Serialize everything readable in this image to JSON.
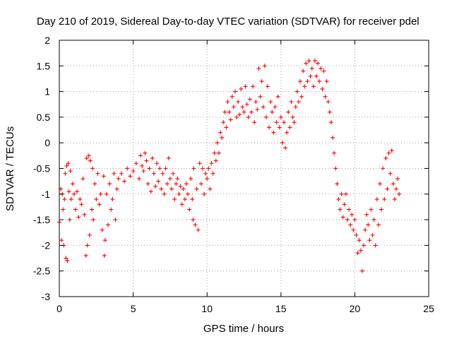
{
  "chart_data": {
    "type": "scatter",
    "title": "Day 210 of 2019, Sidereal Day-to-day VTEC variation (SDTVAR) for receiver pdel",
    "xlabel": "GPS time / hours",
    "ylabel": "SDTVAR / TECUs",
    "xlim": [
      0,
      25
    ],
    "ylim": [
      -3,
      2
    ],
    "xticks": [
      "0",
      "5",
      "10",
      "15",
      "20",
      "25"
    ],
    "yticks": [
      "2",
      "1.5",
      "1",
      "0.5",
      "0",
      "-0.5",
      "-1",
      "-1.5",
      "-2",
      "-2.5",
      "-3"
    ],
    "grid": true,
    "marker": "+",
    "color": "#ff0000",
    "series": [
      {
        "name": "SDTVAR",
        "points": [
          [
            0.0,
            -1.55
          ],
          [
            0.1,
            -0.9
          ],
          [
            0.15,
            -1.9
          ],
          [
            0.2,
            -1.0
          ],
          [
            0.25,
            -1.3
          ],
          [
            0.3,
            -2.0
          ],
          [
            0.35,
            -1.1
          ],
          [
            0.4,
            -0.6
          ],
          [
            0.45,
            -2.25
          ],
          [
            0.5,
            -0.45
          ],
          [
            0.55,
            -2.3
          ],
          [
            0.6,
            -0.4
          ],
          [
            0.65,
            -0.95
          ],
          [
            0.7,
            -1.5
          ],
          [
            0.75,
            -0.55
          ],
          [
            0.8,
            -1.1
          ],
          [
            0.9,
            -0.8
          ],
          [
            1.0,
            -1.0
          ],
          [
            1.1,
            -1.3
          ],
          [
            1.2,
            -0.95
          ],
          [
            1.3,
            -1.45
          ],
          [
            1.4,
            -1.1
          ],
          [
            1.5,
            -1.2
          ],
          [
            1.6,
            -0.7
          ],
          [
            1.7,
            -1.4
          ],
          [
            1.8,
            -2.2
          ],
          [
            1.85,
            -0.3
          ],
          [
            1.9,
            -2.0
          ],
          [
            2.0,
            -0.25
          ],
          [
            2.05,
            -1.8
          ],
          [
            2.1,
            -0.35
          ],
          [
            2.2,
            -1.3
          ],
          [
            2.25,
            -0.5
          ],
          [
            2.3,
            -1.5
          ],
          [
            2.4,
            -0.8
          ],
          [
            2.5,
            -1.1
          ],
          [
            2.6,
            -0.6
          ],
          [
            2.7,
            -1.2
          ],
          [
            2.8,
            -1.0
          ],
          [
            2.9,
            -1.7
          ],
          [
            3.0,
            -0.65
          ],
          [
            3.05,
            -2.2
          ],
          [
            3.1,
            -1.9
          ],
          [
            3.2,
            -1.0
          ],
          [
            3.3,
            -1.6
          ],
          [
            3.4,
            -0.8
          ],
          [
            3.5,
            -1.3
          ],
          [
            3.6,
            -1.1
          ],
          [
            3.7,
            -0.6
          ],
          [
            3.8,
            -1.5
          ],
          [
            3.9,
            -0.9
          ],
          [
            4.0,
            -0.7
          ],
          [
            4.2,
            -0.6
          ],
          [
            4.4,
            -0.75
          ],
          [
            4.6,
            -0.5
          ],
          [
            4.8,
            -0.65
          ],
          [
            5.0,
            -0.55
          ],
          [
            5.2,
            -0.4
          ],
          [
            5.4,
            -0.7
          ],
          [
            5.5,
            -0.25
          ],
          [
            5.6,
            -0.45
          ],
          [
            5.7,
            -0.55
          ],
          [
            5.8,
            -0.2
          ],
          [
            5.9,
            -0.35
          ],
          [
            6.0,
            -0.8
          ],
          [
            6.1,
            -0.5
          ],
          [
            6.2,
            -0.95
          ],
          [
            6.3,
            -0.3
          ],
          [
            6.4,
            -0.6
          ],
          [
            6.5,
            -0.85
          ],
          [
            6.6,
            -0.4
          ],
          [
            6.7,
            -0.75
          ],
          [
            6.8,
            -0.5
          ],
          [
            6.9,
            -0.9
          ],
          [
            7.0,
            -0.6
          ],
          [
            7.1,
            -1.0
          ],
          [
            7.2,
            -0.5
          ],
          [
            7.3,
            -0.8
          ],
          [
            7.4,
            -0.3
          ],
          [
            7.5,
            -0.7
          ],
          [
            7.6,
            -0.9
          ],
          [
            7.7,
            -0.6
          ],
          [
            7.8,
            -1.1
          ],
          [
            7.9,
            -0.8
          ],
          [
            8.0,
            -0.7
          ],
          [
            8.1,
            -1.0
          ],
          [
            8.2,
            -0.85
          ],
          [
            8.3,
            -1.2
          ],
          [
            8.4,
            -0.9
          ],
          [
            8.5,
            -1.1
          ],
          [
            8.6,
            -0.8
          ],
          [
            8.7,
            -1.0
          ],
          [
            8.8,
            -1.3
          ],
          [
            8.9,
            -0.7
          ],
          [
            9.0,
            -1.1
          ],
          [
            9.05,
            -1.5
          ],
          [
            9.1,
            -0.5
          ],
          [
            9.2,
            -1.6
          ],
          [
            9.3,
            -0.9
          ],
          [
            9.4,
            -1.7
          ],
          [
            9.5,
            -0.4
          ],
          [
            9.6,
            -0.8
          ],
          [
            9.7,
            -0.5
          ],
          [
            9.8,
            -1.0
          ],
          [
            9.9,
            -0.6
          ],
          [
            10.0,
            -0.7
          ],
          [
            10.1,
            -0.5
          ],
          [
            10.2,
            -0.9
          ],
          [
            10.3,
            -0.4
          ],
          [
            10.4,
            -0.6
          ],
          [
            10.5,
            -0.2
          ],
          [
            10.6,
            -0.35
          ],
          [
            10.7,
            0.0
          ],
          [
            10.8,
            -0.2
          ],
          [
            10.9,
            0.2
          ],
          [
            11.0,
            0.1
          ],
          [
            11.1,
            0.4
          ],
          [
            11.2,
            0.6
          ],
          [
            11.3,
            0.3
          ],
          [
            11.4,
            0.8
          ],
          [
            11.5,
            0.6
          ],
          [
            11.6,
            0.45
          ],
          [
            11.7,
            0.9
          ],
          [
            11.8,
            0.7
          ],
          [
            11.9,
            1.0
          ],
          [
            12.0,
            0.5
          ],
          [
            12.1,
            0.8
          ],
          [
            12.2,
            0.55
          ],
          [
            12.3,
            1.05
          ],
          [
            12.4,
            0.7
          ],
          [
            12.5,
            0.6
          ],
          [
            12.6,
            1.1
          ],
          [
            12.7,
            0.75
          ],
          [
            12.8,
            0.5
          ],
          [
            12.9,
            0.85
          ],
          [
            13.0,
            0.6
          ],
          [
            13.1,
            1.1
          ],
          [
            13.2,
            0.4
          ],
          [
            13.3,
            0.8
          ],
          [
            13.4,
            0.65
          ],
          [
            13.5,
            1.45
          ],
          [
            13.6,
            0.9
          ],
          [
            13.7,
            1.2
          ],
          [
            13.8,
            0.7
          ],
          [
            13.9,
            1.5
          ],
          [
            14.0,
            0.5
          ],
          [
            14.1,
            1.1
          ],
          [
            14.2,
            0.3
          ],
          [
            14.3,
            0.8
          ],
          [
            14.4,
            0.6
          ],
          [
            14.5,
            0.2
          ],
          [
            14.6,
            0.7
          ],
          [
            14.7,
            0.4
          ],
          [
            14.8,
            0.9
          ],
          [
            14.9,
            0.3
          ],
          [
            15.0,
            0.5
          ],
          [
            15.1,
            0.0
          ],
          [
            15.2,
            0.4
          ],
          [
            15.3,
            -0.1
          ],
          [
            15.4,
            0.2
          ],
          [
            15.5,
            0.6
          ],
          [
            15.6,
            0.3
          ],
          [
            15.7,
            0.8
          ],
          [
            15.8,
            0.5
          ],
          [
            15.9,
            0.4
          ],
          [
            16.0,
            0.7
          ],
          [
            16.1,
            1.0
          ],
          [
            16.2,
            0.8
          ],
          [
            16.3,
            1.2
          ],
          [
            16.4,
            0.9
          ],
          [
            16.5,
            1.4
          ],
          [
            16.6,
            1.1
          ],
          [
            16.7,
            1.55
          ],
          [
            16.8,
            1.2
          ],
          [
            16.9,
            1.6
          ],
          [
            17.0,
            1.3
          ],
          [
            17.1,
            1.45
          ],
          [
            17.2,
            1.1
          ],
          [
            17.3,
            1.6
          ],
          [
            17.4,
            1.3
          ],
          [
            17.5,
            1.55
          ],
          [
            17.6,
            1.2
          ],
          [
            17.7,
            1.45
          ],
          [
            17.8,
            1.05
          ],
          [
            17.9,
            1.4
          ],
          [
            18.0,
            0.9
          ],
          [
            18.1,
            1.2
          ],
          [
            18.2,
            0.8
          ],
          [
            18.3,
            0.6
          ],
          [
            18.4,
            0.4
          ],
          [
            18.5,
            0.1
          ],
          [
            18.6,
            -0.2
          ],
          [
            18.7,
            -0.5
          ],
          [
            18.8,
            -0.8
          ],
          [
            18.9,
            -1.1
          ],
          [
            19.0,
            -1.3
          ],
          [
            19.1,
            -1.0
          ],
          [
            19.2,
            -1.45
          ],
          [
            19.3,
            -1.2
          ],
          [
            19.4,
            -1.0
          ],
          [
            19.5,
            -1.5
          ],
          [
            19.6,
            -1.3
          ],
          [
            19.7,
            -1.6
          ],
          [
            19.8,
            -1.4
          ],
          [
            19.9,
            -1.7
          ],
          [
            20.0,
            -1.5
          ],
          [
            20.1,
            -1.8
          ],
          [
            20.2,
            -2.15
          ],
          [
            20.3,
            -1.9
          ],
          [
            20.4,
            -2.1
          ],
          [
            20.5,
            -2.5
          ],
          [
            20.6,
            -2.0
          ],
          [
            20.7,
            -1.7
          ],
          [
            20.8,
            -1.4
          ],
          [
            20.9,
            -1.6
          ],
          [
            21.0,
            -1.9
          ],
          [
            21.1,
            -1.3
          ],
          [
            21.2,
            -1.8
          ],
          [
            21.3,
            -1.5
          ],
          [
            21.4,
            -2.0
          ],
          [
            21.5,
            -1.1
          ],
          [
            21.6,
            -1.6
          ],
          [
            21.7,
            -0.8
          ],
          [
            21.8,
            -1.3
          ],
          [
            21.9,
            -0.5
          ],
          [
            22.0,
            -1.1
          ],
          [
            22.1,
            -0.3
          ],
          [
            22.2,
            -0.9
          ],
          [
            22.3,
            -0.2
          ],
          [
            22.4,
            -0.6
          ],
          [
            22.5,
            -0.15
          ],
          [
            22.6,
            -0.8
          ],
          [
            22.7,
            -1.1
          ],
          [
            22.8,
            -0.9
          ],
          [
            22.9,
            -0.7
          ],
          [
            23.0,
            -1.0
          ]
        ]
      }
    ]
  }
}
